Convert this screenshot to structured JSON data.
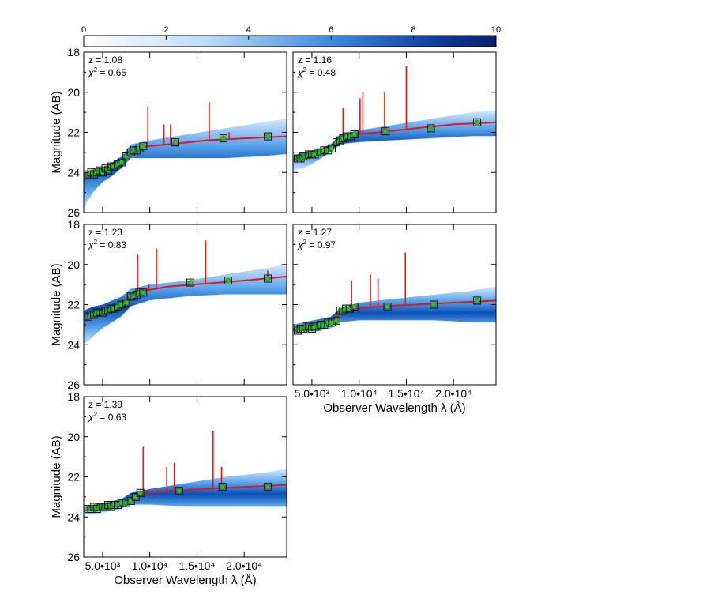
{
  "colorbar": {
    "ticks": [
      "0",
      "2",
      "4",
      "6",
      "8",
      "10"
    ],
    "range": [
      0,
      10
    ],
    "color_low": "#ffffff",
    "color_high": "#0a1f6e"
  },
  "colors": {
    "model": "#e8141c",
    "photometry_fill": "#33c21a",
    "box": "#111111",
    "band_light": "#cfe6fb",
    "band_mid": "#4a9be8",
    "band_dark": "#0b4fb5"
  },
  "axes": {
    "ylabel": "Magnitude (AB)",
    "xlabel": "Observer Wavelength λ (Å)",
    "xlim": [
      3000,
      24500
    ],
    "ylim": [
      26,
      18
    ],
    "yticks": [
      "18",
      "20",
      "22",
      "24",
      "26"
    ],
    "xticks": [
      {
        "value": 5000,
        "label": "5.0•10³"
      },
      {
        "value": 10000,
        "label": "1.0•10⁴"
      },
      {
        "value": 15000,
        "label": "1.5•10⁴"
      },
      {
        "value": 20000,
        "label": "2.0•10⁴"
      }
    ]
  },
  "chart_data": [
    {
      "type": "line",
      "z_text": "z = 1.08",
      "chi_value": "0.65",
      "emission_lines": [
        [
          9800,
          20.7
        ],
        [
          11500,
          21.6
        ],
        [
          12200,
          21.6
        ],
        [
          16300,
          20.5
        ],
        [
          18400,
          22.0
        ]
      ],
      "phot": [
        [
          3500,
          24.1
        ],
        [
          3800,
          24.0
        ],
        [
          4100,
          24.1
        ],
        [
          4400,
          24.0
        ],
        [
          4700,
          23.9
        ],
        [
          5000,
          24.0
        ],
        [
          5300,
          23.8
        ],
        [
          5600,
          23.9
        ],
        [
          5900,
          23.7
        ],
        [
          6200,
          23.7
        ],
        [
          6600,
          23.6
        ],
        [
          7000,
          23.5
        ],
        [
          7500,
          23.2
        ],
        [
          8000,
          23.0
        ],
        [
          8300,
          22.9
        ],
        [
          8600,
          22.9
        ],
        [
          8900,
          22.8
        ],
        [
          9300,
          22.7
        ],
        [
          12700,
          22.5
        ],
        [
          17800,
          22.3
        ],
        [
          22500,
          22.2
        ]
      ],
      "model": [
        [
          3000,
          24.2
        ],
        [
          4000,
          24.1
        ],
        [
          5000,
          24.0
        ],
        [
          6000,
          23.8
        ],
        [
          7000,
          23.6
        ],
        [
          7600,
          23.0
        ],
        [
          8200,
          22.9
        ],
        [
          9500,
          22.7
        ],
        [
          12000,
          22.6
        ],
        [
          16000,
          22.4
        ],
        [
          20000,
          22.3
        ],
        [
          24500,
          22.2
        ]
      ],
      "band_upper": [
        [
          3000,
          24.0
        ],
        [
          4000,
          23.9
        ],
        [
          5000,
          23.8
        ],
        [
          6000,
          23.5
        ],
        [
          7000,
          23.2
        ],
        [
          8000,
          22.6
        ],
        [
          10000,
          22.4
        ],
        [
          14000,
          22.1
        ],
        [
          18000,
          21.8
        ],
        [
          22000,
          21.5
        ],
        [
          24500,
          21.3
        ]
      ],
      "band_lower": [
        [
          3000,
          25.8
        ],
        [
          4000,
          25.0
        ],
        [
          5000,
          24.5
        ],
        [
          6000,
          24.2
        ],
        [
          7000,
          23.8
        ],
        [
          8000,
          23.3
        ],
        [
          10000,
          23.3
        ],
        [
          14000,
          23.3
        ],
        [
          18000,
          23.3
        ],
        [
          22000,
          23.2
        ],
        [
          24500,
          23.1
        ]
      ]
    },
    {
      "type": "line",
      "z_text": "z = 1.16",
      "chi_value": "0.48",
      "emission_lines": [
        [
          8300,
          20.8
        ],
        [
          10100,
          20.3
        ],
        [
          10400,
          20.0
        ],
        [
          12700,
          20.0
        ],
        [
          15000,
          18.7
        ],
        [
          22000,
          21.5
        ]
      ],
      "phot": [
        [
          3500,
          23.3
        ],
        [
          3800,
          23.3
        ],
        [
          4100,
          23.2
        ],
        [
          4400,
          23.2
        ],
        [
          4700,
          23.1
        ],
        [
          5000,
          23.1
        ],
        [
          5300,
          23.1
        ],
        [
          5600,
          23.0
        ],
        [
          5900,
          23.0
        ],
        [
          6300,
          22.9
        ],
        [
          6700,
          22.9
        ],
        [
          7100,
          22.8
        ],
        [
          7600,
          22.5
        ],
        [
          8000,
          22.4
        ],
        [
          8300,
          22.3
        ],
        [
          8700,
          22.2
        ],
        [
          9100,
          22.2
        ],
        [
          9500,
          22.1
        ],
        [
          12800,
          21.95
        ],
        [
          17600,
          21.8
        ],
        [
          22500,
          21.5
        ]
      ],
      "model": [
        [
          3000,
          23.4
        ],
        [
          4000,
          23.3
        ],
        [
          5000,
          23.2
        ],
        [
          6000,
          23.0
        ],
        [
          7000,
          22.9
        ],
        [
          7600,
          22.5
        ],
        [
          8200,
          22.3
        ],
        [
          9500,
          22.1
        ],
        [
          12000,
          22.0
        ],
        [
          16000,
          21.8
        ],
        [
          20000,
          21.6
        ],
        [
          24500,
          21.5
        ]
      ],
      "band_upper": [
        [
          3000,
          23.2
        ],
        [
          4000,
          23.0
        ],
        [
          5000,
          22.9
        ],
        [
          6000,
          22.8
        ],
        [
          7000,
          22.6
        ],
        [
          8000,
          22.1
        ],
        [
          10000,
          21.9
        ],
        [
          14000,
          21.6
        ],
        [
          18000,
          21.3
        ],
        [
          22000,
          21.0
        ],
        [
          24500,
          20.9
        ]
      ],
      "band_lower": [
        [
          3000,
          23.9
        ],
        [
          4000,
          23.8
        ],
        [
          5000,
          23.6
        ],
        [
          6000,
          23.3
        ],
        [
          7000,
          23.0
        ],
        [
          8000,
          22.6
        ],
        [
          10000,
          22.5
        ],
        [
          14000,
          22.4
        ],
        [
          18000,
          22.3
        ],
        [
          22000,
          22.2
        ],
        [
          24500,
          22.2
        ]
      ]
    },
    {
      "type": "line",
      "z_text": "z = 1.23",
      "chi_value": "0.83",
      "emission_lines": [
        [
          8700,
          19.5
        ],
        [
          9900,
          21.0
        ],
        [
          10700,
          19.2
        ],
        [
          15900,
          18.8
        ],
        [
          22500,
          20.3
        ]
      ],
      "phot": [
        [
          3500,
          22.6
        ],
        [
          3800,
          22.5
        ],
        [
          4100,
          22.5
        ],
        [
          4400,
          22.4
        ],
        [
          4700,
          22.4
        ],
        [
          5000,
          22.4
        ],
        [
          5300,
          22.3
        ],
        [
          5600,
          22.3
        ],
        [
          5900,
          22.2
        ],
        [
          6200,
          22.2
        ],
        [
          6600,
          22.1
        ],
        [
          7000,
          22.0
        ],
        [
          7500,
          21.9
        ],
        [
          8000,
          21.6
        ],
        [
          8300,
          21.6
        ],
        [
          8600,
          21.5
        ],
        [
          8900,
          21.4
        ],
        [
          9300,
          21.4
        ],
        [
          14300,
          20.9
        ],
        [
          18300,
          20.8
        ],
        [
          22500,
          20.7
        ]
      ],
      "model": [
        [
          3000,
          22.8
        ],
        [
          4000,
          22.6
        ],
        [
          5000,
          22.4
        ],
        [
          6000,
          22.2
        ],
        [
          7000,
          22.0
        ],
        [
          7600,
          21.7
        ],
        [
          8200,
          21.5
        ],
        [
          9500,
          21.3
        ],
        [
          12000,
          21.1
        ],
        [
          16000,
          20.95
        ],
        [
          20000,
          20.8
        ],
        [
          24500,
          20.6
        ]
      ],
      "band_upper": [
        [
          3000,
          22.3
        ],
        [
          4000,
          22.1
        ],
        [
          5000,
          22.0
        ],
        [
          6000,
          21.8
        ],
        [
          7000,
          21.6
        ],
        [
          8000,
          21.2
        ],
        [
          10000,
          21.0
        ],
        [
          14000,
          20.8
        ],
        [
          18000,
          20.5
        ],
        [
          22000,
          20.2
        ],
        [
          24500,
          20.0
        ]
      ],
      "band_lower": [
        [
          3000,
          24.0
        ],
        [
          4000,
          23.6
        ],
        [
          5000,
          23.2
        ],
        [
          6000,
          22.9
        ],
        [
          7000,
          22.6
        ],
        [
          8000,
          22.1
        ],
        [
          10000,
          21.8
        ],
        [
          14000,
          21.6
        ],
        [
          18000,
          21.5
        ],
        [
          22000,
          21.5
        ],
        [
          24500,
          21.5
        ]
      ]
    },
    {
      "type": "line",
      "z_text": "z = 1.27",
      "chi_value": "0.97",
      "emission_lines": [
        [
          9200,
          20.8
        ],
        [
          11200,
          20.5
        ],
        [
          12000,
          20.7
        ],
        [
          14900,
          19.4
        ],
        [
          22500,
          21.8
        ]
      ],
      "phot": [
        [
          3500,
          23.3
        ],
        [
          3800,
          23.2
        ],
        [
          4100,
          23.2
        ],
        [
          4400,
          23.1
        ],
        [
          4700,
          23.1
        ],
        [
          5000,
          23.2
        ],
        [
          5300,
          23.1
        ],
        [
          5600,
          23.1
        ],
        [
          5900,
          23.0
        ],
        [
          6300,
          23.0
        ],
        [
          6700,
          22.9
        ],
        [
          7100,
          22.9
        ],
        [
          7600,
          22.8
        ],
        [
          8000,
          22.3
        ],
        [
          8300,
          22.3
        ],
        [
          8600,
          22.2
        ],
        [
          9000,
          22.2
        ],
        [
          9500,
          22.1
        ],
        [
          13000,
          22.1
        ],
        [
          17900,
          22.0
        ],
        [
          22500,
          21.8
        ]
      ],
      "model": [
        [
          3000,
          23.3
        ],
        [
          4000,
          23.2
        ],
        [
          5000,
          23.1
        ],
        [
          6000,
          23.0
        ],
        [
          7000,
          22.9
        ],
        [
          7700,
          22.6
        ],
        [
          8200,
          22.3
        ],
        [
          9500,
          22.2
        ],
        [
          12000,
          22.1
        ],
        [
          16000,
          22.0
        ],
        [
          20000,
          21.9
        ],
        [
          24500,
          21.8
        ]
      ],
      "band_upper": [
        [
          3000,
          23.0
        ],
        [
          4000,
          22.9
        ],
        [
          5000,
          22.8
        ],
        [
          6000,
          22.7
        ],
        [
          7000,
          22.6
        ],
        [
          8000,
          22.2
        ],
        [
          10000,
          21.9
        ],
        [
          14000,
          21.7
        ],
        [
          18000,
          21.5
        ],
        [
          22000,
          21.3
        ],
        [
          24500,
          21.1
        ]
      ],
      "band_lower": [
        [
          3000,
          23.5
        ],
        [
          4000,
          23.5
        ],
        [
          5000,
          23.4
        ],
        [
          6000,
          23.3
        ],
        [
          7000,
          23.2
        ],
        [
          8000,
          22.9
        ],
        [
          10000,
          22.8
        ],
        [
          14000,
          22.8
        ],
        [
          18000,
          22.8
        ],
        [
          22000,
          22.9
        ],
        [
          24500,
          22.9
        ]
      ]
    },
    {
      "type": "line",
      "z_text": "z = 1.39",
      "chi_value": "0.63",
      "emission_lines": [
        [
          9300,
          20.5
        ],
        [
          11800,
          21.5
        ],
        [
          12600,
          21.3
        ],
        [
          16700,
          19.7
        ],
        [
          17600,
          21.5
        ]
      ],
      "phot": [
        [
          3500,
          23.6
        ],
        [
          3800,
          23.6
        ],
        [
          4100,
          23.5
        ],
        [
          4400,
          23.6
        ],
        [
          4700,
          23.5
        ],
        [
          5000,
          23.5
        ],
        [
          5300,
          23.5
        ],
        [
          5600,
          23.4
        ],
        [
          5900,
          23.5
        ],
        [
          6200,
          23.4
        ],
        [
          6600,
          23.4
        ],
        [
          7000,
          23.3
        ],
        [
          7500,
          23.3
        ],
        [
          8000,
          23.2
        ],
        [
          8500,
          23.0
        ],
        [
          9000,
          22.8
        ],
        [
          13100,
          22.7
        ],
        [
          17700,
          22.5
        ],
        [
          22500,
          22.5
        ]
      ],
      "model": [
        [
          3000,
          23.7
        ],
        [
          4000,
          23.6
        ],
        [
          5000,
          23.5
        ],
        [
          6000,
          23.5
        ],
        [
          7000,
          23.4
        ],
        [
          7800,
          23.2
        ],
        [
          8500,
          22.9
        ],
        [
          9500,
          22.8
        ],
        [
          12000,
          22.7
        ],
        [
          16000,
          22.6
        ],
        [
          20000,
          22.5
        ],
        [
          24500,
          22.4
        ]
      ],
      "band_upper": [
        [
          3000,
          23.4
        ],
        [
          4000,
          23.4
        ],
        [
          5000,
          23.3
        ],
        [
          6000,
          23.2
        ],
        [
          7000,
          23.1
        ],
        [
          8000,
          22.8
        ],
        [
          10000,
          22.6
        ],
        [
          14000,
          22.3
        ],
        [
          18000,
          22.0
        ],
        [
          22000,
          21.8
        ],
        [
          24500,
          21.6
        ]
      ],
      "band_lower": [
        [
          3000,
          23.9
        ],
        [
          4000,
          23.9
        ],
        [
          5000,
          23.8
        ],
        [
          6000,
          23.7
        ],
        [
          7000,
          23.6
        ],
        [
          8000,
          23.4
        ],
        [
          10000,
          23.4
        ],
        [
          14000,
          23.5
        ],
        [
          18000,
          23.5
        ],
        [
          22000,
          23.5
        ],
        [
          24500,
          23.5
        ]
      ]
    }
  ]
}
